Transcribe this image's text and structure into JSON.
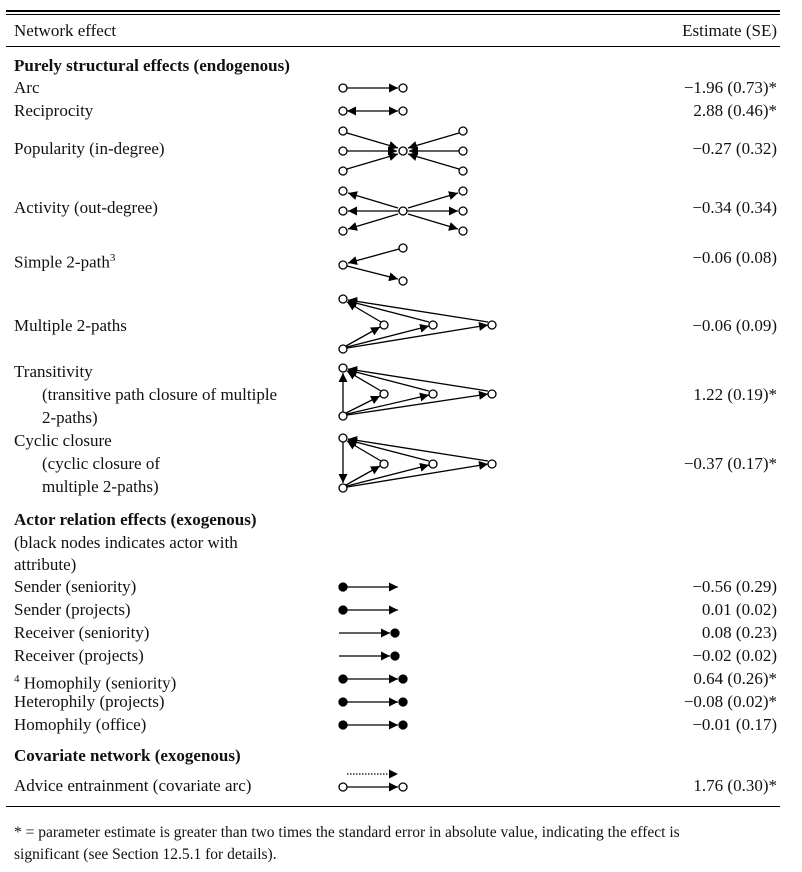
{
  "header": {
    "effect_label": "Network effect",
    "estimate_label": "Estimate (SE)"
  },
  "sections": {
    "structural": "Purely structural effects (endogenous)",
    "actor": "Actor relation effects (exogenous)",
    "actor_note_1": "(black nodes indicates actor with",
    "actor_note_2": "attribute)",
    "covariate": "Covariate network (exogenous)"
  },
  "rows": {
    "arc": {
      "label": "Arc",
      "estimate": "−1.96 (0.73)*"
    },
    "reciprocity": {
      "label": "Reciprocity",
      "estimate": "2.88 (0.46)*"
    },
    "popularity": {
      "label": "Popularity (in-degree)",
      "estimate": "−0.27 (0.32)"
    },
    "activity": {
      "label": "Activity (out-degree)",
      "estimate": "−0.34 (0.34)"
    },
    "simple2path": {
      "label": "Simple 2-path",
      "sup": "3",
      "estimate": "−0.06 (0.08)"
    },
    "multiple2paths": {
      "label": "Multiple 2-paths",
      "estimate": "−0.06 (0.09)"
    },
    "transitivity": {
      "label": "Transitivity",
      "sub1": "(transitive path closure of multiple",
      "sub2": "2-paths)",
      "estimate": "1.22 (0.19)*"
    },
    "cyclic": {
      "label": "Cyclic closure",
      "sub1": "(cyclic closure of",
      "sub2": "multiple 2-paths)",
      "estimate": "−0.37 (0.17)*"
    },
    "sender_seniority": {
      "label": "Sender (seniority)",
      "estimate": "−0.56 (0.29)"
    },
    "sender_projects": {
      "label": "Sender (projects)",
      "estimate": "0.01 (0.02)"
    },
    "receiver_seniority": {
      "label": "Receiver (seniority)",
      "estimate": "0.08 (0.23)"
    },
    "receiver_projects": {
      "label": "Receiver (projects)",
      "estimate": "−0.02 (0.02)"
    },
    "homophily_seniority": {
      "sup": "4",
      "label": "Homophily (seniority)",
      "estimate": "0.64 (0.26)*"
    },
    "heterophily_projects": {
      "label": "Heterophily (projects)",
      "estimate": "−0.08 (0.02)*"
    },
    "homophily_office": {
      "label": "Homophily (office)",
      "estimate": "−0.01 (0.17)"
    },
    "advice": {
      "label": "Advice entrainment (covariate arc)",
      "estimate": "1.76 (0.30)*"
    }
  },
  "footnote": {
    "line1": "* = parameter estimate is greater than two times the standard error in absolute value, indicating the effect is",
    "line2": "significant (see Section 12.5.1 for details)."
  }
}
